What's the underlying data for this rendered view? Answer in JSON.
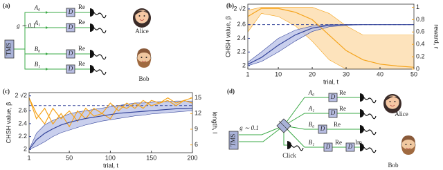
{
  "diagram_a": {
    "label": "(a)",
    "gain": "g ∼ 0.1",
    "source": "TMS",
    "modes": [
      "A₀",
      "A₁",
      "B₀",
      "B₁"
    ],
    "displacements": [
      "D",
      "D",
      "D",
      "D"
    ],
    "quadratures": [
      "Re",
      "Re",
      "Re",
      "Re"
    ],
    "parties": [
      "Alice",
      "Bob"
    ]
  },
  "diagram_d": {
    "label": "(d)",
    "gain": "g ∼ 0.1",
    "source": "TMS",
    "click": "Click",
    "modes": [
      "A₀",
      "A₁",
      "B₀",
      "B₁"
    ],
    "displacements": [
      "D",
      "D",
      "D",
      "D",
      "D"
    ],
    "quadratures": [
      "Re",
      "Re",
      "Re",
      "Re",
      "Im"
    ],
    "parties": [
      "Alice",
      "Bob"
    ]
  },
  "chart_data": [
    {
      "type": "line",
      "panel_label": "(b)",
      "xlabel": "trial, t",
      "ylabel": "CHSH value, β",
      "y2label": "reward, r",
      "x": [
        1,
        5,
        10,
        15,
        20,
        25,
        30,
        35,
        40,
        45,
        50
      ],
      "xlim": [
        1,
        50
      ],
      "xticks": [
        1,
        10,
        20,
        30,
        40,
        50
      ],
      "ylim": [
        1.95,
        2.9
      ],
      "yticks": [
        2,
        2.2,
        2.4,
        2.6,
        {
          "value": 2.83,
          "label": "2 √2"
        }
      ],
      "y2lim": [
        0,
        1.05
      ],
      "y2ticks": [
        0,
        0.2,
        0.4,
        0.6,
        0.8,
        1
      ],
      "reference_line": 2.6,
      "series": [
        {
          "color": "#f5a31a",
          "band_color": "#fcdcab",
          "axis": "y2",
          "values": [
            0.85,
            0.98,
            0.98,
            0.92,
            0.8,
            0.55,
            0.3,
            0.15,
            0.08,
            0.05,
            0.03
          ],
          "lower": [
            0.6,
            0.9,
            0.85,
            0.7,
            0.45,
            0.15,
            0,
            0,
            0,
            0,
            0
          ],
          "upper": [
            0.95,
            1,
            1,
            1,
            1,
            0.9,
            0.7,
            0.55,
            0.55,
            0.55,
            0.55
          ]
        },
        {
          "color": "#34449a",
          "band_color": "#bcc3e8",
          "values": [
            2.02,
            2.12,
            2.3,
            2.45,
            2.55,
            2.59,
            2.6,
            2.6,
            2.6,
            2.6,
            2.6
          ],
          "lower": [
            2,
            2.06,
            2.2,
            2.36,
            2.5,
            2.57,
            2.59,
            2.6,
            2.6,
            2.6,
            2.6
          ],
          "upper": [
            2.05,
            2.2,
            2.4,
            2.52,
            2.58,
            2.6,
            2.6,
            2.6,
            2.6,
            2.6,
            2.6
          ]
        }
      ]
    },
    {
      "type": "line",
      "panel_label": "(c)",
      "xlabel": "trial, t",
      "ylabel": "CHSH value, β",
      "y2label": "length, l",
      "x": [
        1,
        10,
        20,
        30,
        40,
        50,
        60,
        70,
        80,
        90,
        100,
        110,
        120,
        130,
        140,
        150,
        160,
        170,
        180,
        190,
        200
      ],
      "xlim": [
        1,
        200
      ],
      "xticks": [
        1,
        50,
        100,
        150,
        200
      ],
      "ylim": [
        1.95,
        2.88
      ],
      "yticks": [
        2,
        2.2,
        2.4,
        2.6,
        {
          "value": 2.83,
          "label": "2 √2"
        }
      ],
      "y2lim": [
        4.5,
        16
      ],
      "y2ticks": [
        6,
        9,
        12,
        15
      ],
      "reference_line": 2.68,
      "series": [
        {
          "color": "#f5a31a",
          "axis": "y2",
          "values": [
            15,
            11,
            13,
            10,
            12,
            9.5,
            12.5,
            11,
            13,
            12,
            14,
            12.5,
            14,
            13,
            14.5,
            13.5,
            14,
            14.5,
            13.5,
            14.5,
            14
          ]
        },
        {
          "color": "#f5a31a",
          "axis": "y2",
          "values": [
            15,
            12,
            10,
            13,
            11,
            12.5,
            10.5,
            13,
            11.5,
            12,
            11,
            13.5,
            13,
            14,
            13,
            14.5,
            14,
            15,
            14,
            14.5,
            15
          ]
        },
        {
          "color": "#34449a",
          "band_color": "#bcc3e8",
          "values": [
            2,
            2.15,
            2.25,
            2.32,
            2.38,
            2.42,
            2.45,
            2.48,
            2.5,
            2.52,
            2.54,
            2.56,
            2.57,
            2.58,
            2.59,
            2.6,
            2.61,
            2.62,
            2.63,
            2.63,
            2.64
          ],
          "lower": [
            2,
            2.05,
            2.12,
            2.2,
            2.26,
            2.3,
            2.34,
            2.38,
            2.41,
            2.44,
            2.46,
            2.48,
            2.5,
            2.52,
            2.53,
            2.55,
            2.56,
            2.57,
            2.58,
            2.59,
            2.6
          ],
          "upper": [
            2,
            2.25,
            2.38,
            2.45,
            2.5,
            2.55,
            2.58,
            2.6,
            2.62,
            2.64,
            2.66,
            2.68,
            2.7,
            2.72,
            2.72,
            2.73,
            2.74,
            2.74,
            2.75,
            2.75,
            2.75
          ]
        }
      ]
    }
  ]
}
